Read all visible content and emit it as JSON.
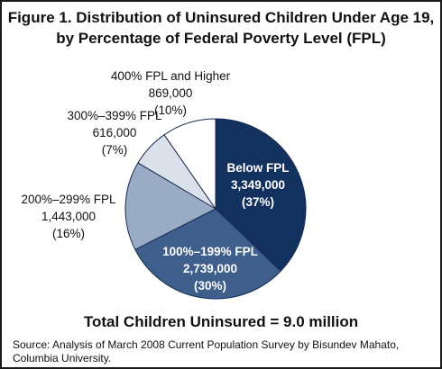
{
  "figure": {
    "title_line1": "Figure 1. Distribution of Uninsured Children Under Age 19,",
    "title_line2": "by Percentage of Federal Poverty Level (FPL)",
    "total_text": "Total Children Uninsured = 9.0 million",
    "source_line1": "Source: Analysis of March 2008 Current Population Survey by Bisundev Mahato,",
    "source_line2": "Columbia University."
  },
  "chart_data": {
    "type": "pie",
    "title": "Figure 1. Distribution of Uninsured Children Under Age 19, by Percentage of Federal Poverty Level (FPL)",
    "total": "Total Children Uninsured = 9.0 million",
    "slices": [
      {
        "label": "Below FPL",
        "value": 3349000,
        "value_text": "3,349,000",
        "percent": 37,
        "percent_text": "(37%)",
        "color": "#12315f"
      },
      {
        "label": "100%–199% FPL",
        "value": 2739000,
        "value_text": "2,739,000",
        "percent": 30,
        "percent_text": "(30%)",
        "color": "#3e5e8c"
      },
      {
        "label": "200%–299% FPL",
        "value": 1443000,
        "value_text": "1,443,000",
        "percent": 16,
        "percent_text": "(16%)",
        "color": "#9aabc6"
      },
      {
        "label": "300%–399% FPL",
        "value": 616000,
        "value_text": "616,000",
        "percent": 7,
        "percent_text": "(7%)",
        "color": "#dbe1ea"
      },
      {
        "label": "400% FPL and Higher",
        "value": 869000,
        "value_text": "869,000",
        "percent": 10,
        "percent_text": "(10%)",
        "color": "#ffffff"
      }
    ]
  }
}
